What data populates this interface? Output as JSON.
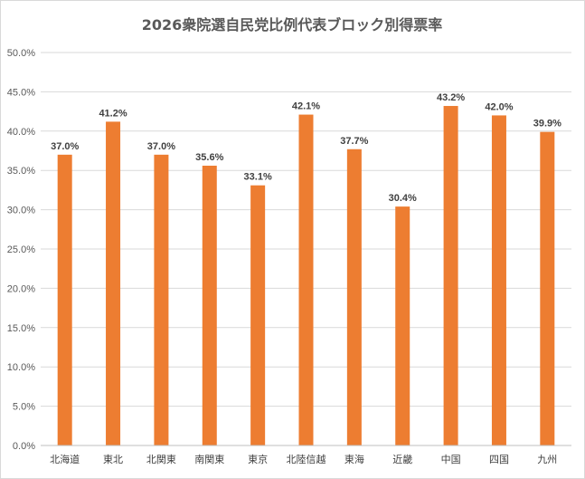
{
  "chart_data": {
    "type": "bar",
    "title": "2026衆院選自民党比例代表ブロック別得票率",
    "categories": [
      "北海道",
      "東北",
      "北関東",
      "南関東",
      "東京",
      "北陸信越",
      "東海",
      "近畿",
      "中国",
      "四国",
      "九州"
    ],
    "values": [
      37.0,
      41.2,
      37.0,
      35.6,
      33.1,
      42.1,
      37.7,
      30.4,
      43.2,
      42.0,
      39.9
    ],
    "data_labels": [
      "37.0%",
      "41.2%",
      "37.0%",
      "35.6%",
      "33.1%",
      "42.1%",
      "37.7%",
      "30.4%",
      "43.2%",
      "42.0%",
      "39.9%"
    ],
    "y_ticks": [
      "0.0%",
      "5.0%",
      "10.0%",
      "15.0%",
      "20.0%",
      "25.0%",
      "30.0%",
      "35.0%",
      "40.0%",
      "45.0%",
      "50.0%"
    ],
    "ylim": [
      0,
      50
    ],
    "xlabel": "",
    "ylabel": "",
    "grid": true,
    "legend": "none",
    "bar_color": "#ED7D31"
  }
}
